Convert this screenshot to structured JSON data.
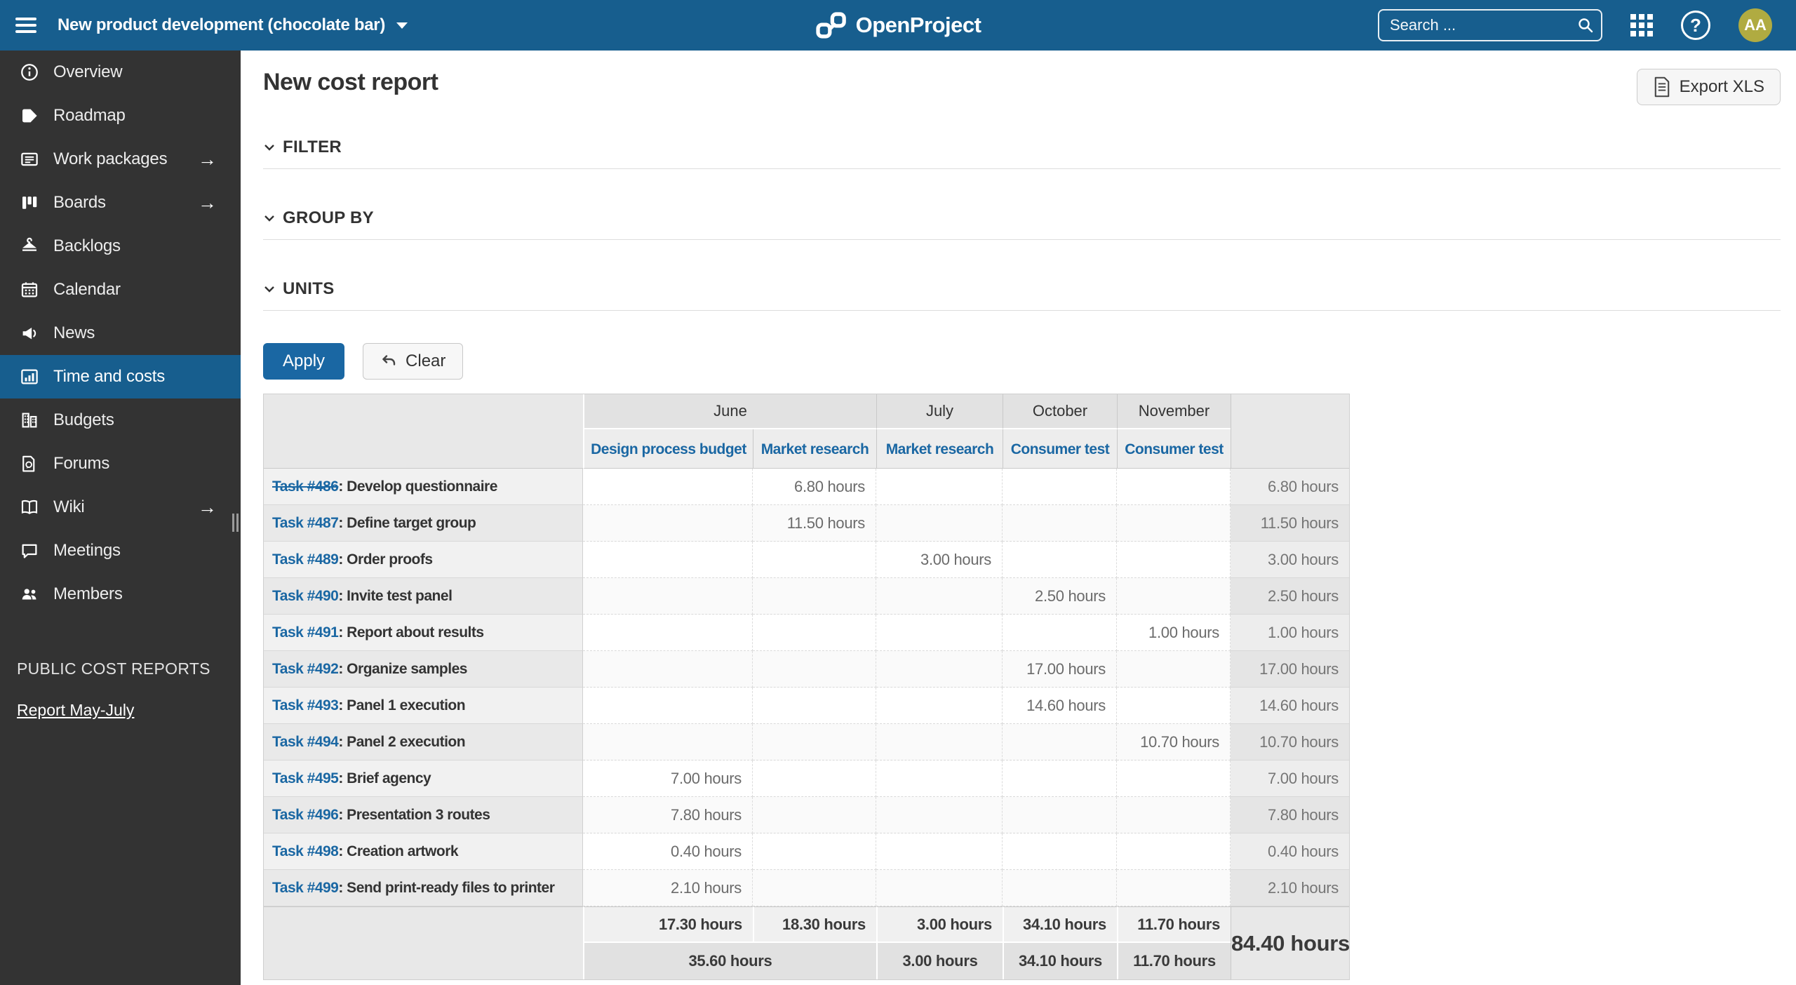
{
  "topbar": {
    "project_name": "New product development (chocolate bar)",
    "logo_text": "OpenProject",
    "search_placeholder": "Search ...",
    "avatar_initials": "AA"
  },
  "sidebar": {
    "items": [
      {
        "label": "Overview",
        "icon": "info-icon",
        "arrow": false,
        "active": false
      },
      {
        "label": "Roadmap",
        "icon": "roadmap-icon",
        "arrow": false,
        "active": false
      },
      {
        "label": "Work packages",
        "icon": "work-packages-icon",
        "arrow": true,
        "active": false
      },
      {
        "label": "Boards",
        "icon": "boards-icon",
        "arrow": true,
        "active": false
      },
      {
        "label": "Backlogs",
        "icon": "backlogs-icon",
        "arrow": false,
        "active": false
      },
      {
        "label": "Calendar",
        "icon": "calendar-icon",
        "arrow": false,
        "active": false
      },
      {
        "label": "News",
        "icon": "news-icon",
        "arrow": false,
        "active": false
      },
      {
        "label": "Time and costs",
        "icon": "time-costs-icon",
        "arrow": false,
        "active": true
      },
      {
        "label": "Budgets",
        "icon": "budgets-icon",
        "arrow": false,
        "active": false
      },
      {
        "label": "Forums",
        "icon": "forums-icon",
        "arrow": false,
        "active": false
      },
      {
        "label": "Wiki",
        "icon": "wiki-icon",
        "arrow": true,
        "active": false
      },
      {
        "label": "Meetings",
        "icon": "meetings-icon",
        "arrow": false,
        "active": false
      },
      {
        "label": "Members",
        "icon": "members-icon",
        "arrow": false,
        "active": false
      }
    ],
    "section_label": "PUBLIC COST REPORTS",
    "report_link": "Report May-July"
  },
  "main": {
    "title": "New cost report",
    "export_button": "Export XLS",
    "sections": [
      {
        "label": "FILTER"
      },
      {
        "label": "GROUP BY"
      },
      {
        "label": "UNITS"
      }
    ],
    "apply_button": "Apply",
    "clear_button": "Clear"
  },
  "table": {
    "months": [
      "June",
      "July",
      "October",
      "November"
    ],
    "subheaders": [
      "Design process budget",
      "Market research",
      "Market research",
      "Consumer test",
      "Consumer test"
    ],
    "rows": [
      {
        "task": "Task #486",
        "struck": true,
        "desc": ": Develop questionnaire",
        "cells": [
          "",
          "6.80 hours",
          "",
          "",
          ""
        ],
        "total": "6.80 hours"
      },
      {
        "task": "Task #487",
        "struck": false,
        "desc": ": Define target group",
        "cells": [
          "",
          "11.50 hours",
          "",
          "",
          ""
        ],
        "total": "11.50 hours"
      },
      {
        "task": "Task #489",
        "struck": false,
        "desc": ": Order proofs",
        "cells": [
          "",
          "",
          "3.00 hours",
          "",
          ""
        ],
        "total": "3.00 hours"
      },
      {
        "task": "Task #490",
        "struck": false,
        "desc": ": Invite test panel",
        "cells": [
          "",
          "",
          "",
          "2.50 hours",
          ""
        ],
        "total": "2.50 hours"
      },
      {
        "task": "Task #491",
        "struck": false,
        "desc": ": Report about results",
        "cells": [
          "",
          "",
          "",
          "",
          "1.00 hours"
        ],
        "total": "1.00 hours"
      },
      {
        "task": "Task #492",
        "struck": false,
        "desc": ": Organize samples",
        "cells": [
          "",
          "",
          "",
          "17.00 hours",
          ""
        ],
        "total": "17.00 hours"
      },
      {
        "task": "Task #493",
        "struck": false,
        "desc": ": Panel 1 execution",
        "cells": [
          "",
          "",
          "",
          "14.60 hours",
          ""
        ],
        "total": "14.60 hours"
      },
      {
        "task": "Task #494",
        "struck": false,
        "desc": ": Panel 2 execution",
        "cells": [
          "",
          "",
          "",
          "",
          "10.70 hours"
        ],
        "total": "10.70 hours"
      },
      {
        "task": "Task #495",
        "struck": false,
        "desc": ": Brief agency",
        "cells": [
          "7.00 hours",
          "",
          "",
          "",
          ""
        ],
        "total": "7.00 hours"
      },
      {
        "task": "Task #496",
        "struck": false,
        "desc": ": Presentation 3 routes",
        "cells": [
          "7.80 hours",
          "",
          "",
          "",
          ""
        ],
        "total": "7.80 hours"
      },
      {
        "task": "Task #498",
        "struck": false,
        "desc": ": Creation artwork",
        "cells": [
          "0.40 hours",
          "",
          "",
          "",
          ""
        ],
        "total": "0.40 hours"
      },
      {
        "task": "Task #499",
        "struck": false,
        "desc": ": Send print-ready files to printer",
        "cells": [
          "2.10 hours",
          "",
          "",
          "",
          ""
        ],
        "total": "2.10 hours"
      }
    ],
    "footer": {
      "col_totals": [
        "17.30 hours",
        "18.30 hours",
        "3.00 hours",
        "34.10 hours",
        "11.70 hours"
      ],
      "month_totals": [
        "35.60 hours",
        "3.00 hours",
        "34.10 hours",
        "11.70 hours"
      ],
      "grand_total": "84.40 hours"
    }
  },
  "colors": {
    "topbar_bg": "#175E8E",
    "accent_link": "#1A67A3",
    "sidebar_bg": "#333333",
    "active_item_bg": "#175E8E",
    "avatar_bg": "#B0AB41"
  }
}
